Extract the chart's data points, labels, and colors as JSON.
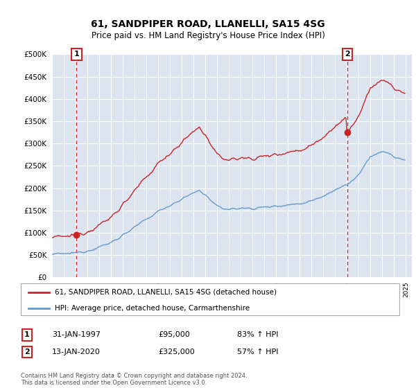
{
  "title": "61, SANDPIPER ROAD, LLANELLI, SA15 4SG",
  "subtitle": "Price paid vs. HM Land Registry's House Price Index (HPI)",
  "ylim": [
    0,
    500000
  ],
  "yticks": [
    0,
    50000,
    100000,
    150000,
    200000,
    250000,
    300000,
    350000,
    400000,
    450000,
    500000
  ],
  "plot_bg_color": "#dce4f0",
  "fig_bg_color": "#ffffff",
  "legend_label_red": "61, SANDPIPER ROAD, LLANELLI, SA15 4SG (detached house)",
  "legend_label_blue": "HPI: Average price, detached house, Carmarthenshire",
  "purchase1_date": 1997.08,
  "purchase1_price": 95000,
  "purchase2_date": 2020.04,
  "purchase2_price": 325000,
  "footer": "Contains HM Land Registry data © Crown copyright and database right 2024.\nThis data is licensed under the Open Government Licence v3.0.",
  "annotation1_label": "1",
  "annotation1_date": "31-JAN-1997",
  "annotation1_price": "£95,000",
  "annotation1_hpi": "83% ↑ HPI",
  "annotation2_label": "2",
  "annotation2_date": "13-JAN-2020",
  "annotation2_price": "£325,000",
  "annotation2_hpi": "57% ↑ HPI",
  "red_color": "#cc2222",
  "blue_color": "#6699cc",
  "vline_color": "#cc2222",
  "xlim_left": 1995.0,
  "xlim_right": 2025.5
}
